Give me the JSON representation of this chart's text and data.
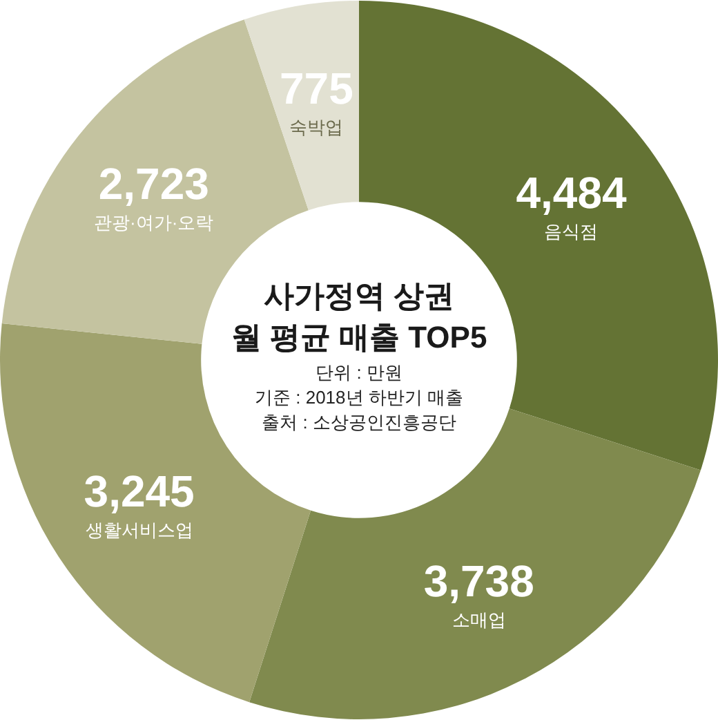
{
  "chart_data": {
    "type": "donut",
    "title": "사가정역 상권\n월 평균 매출 TOP5",
    "annotations": [
      "단위 : 만원",
      "기준 : 2018년 하반기 매출",
      "출처 : 소상공인진흥공단"
    ],
    "categories": [
      "음식점",
      "소매업",
      "생활서비스업",
      "관광·여가·오락",
      "숙박업"
    ],
    "values": [
      4484,
      3738,
      3245,
      2723,
      775
    ],
    "value_labels": [
      "4,484",
      "3,738",
      "3,245",
      "2,723",
      "775"
    ],
    "colors": [
      "#647334",
      "#808a4e",
      "#a0a26e",
      "#c4c3a0",
      "#e2e1d2"
    ]
  }
}
